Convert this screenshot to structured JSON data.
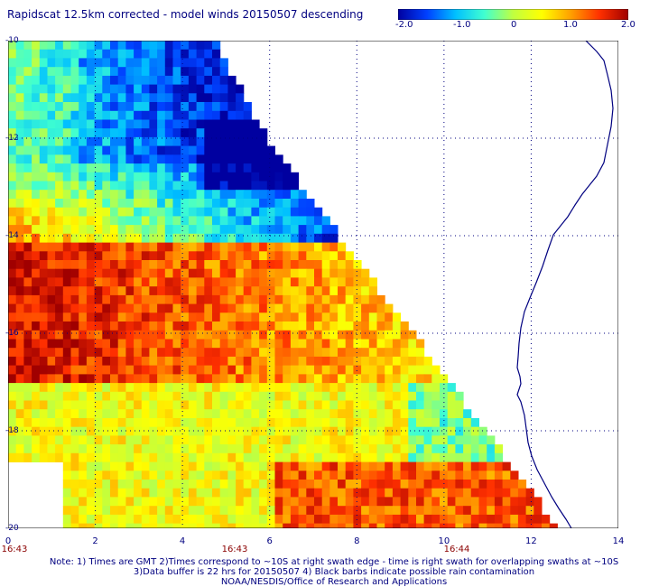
{
  "title": "Rapidscat 12.5km corrected - model winds 20150507 descending",
  "colorbar": {
    "labels": [
      "-2.0",
      "-1.0",
      "0",
      "1.0",
      "2.0"
    ],
    "range": [
      -2.0,
      2.0
    ],
    "colors": [
      "#0000a0",
      "#0040ff",
      "#00c0ff",
      "#40ffd0",
      "#c0ff40",
      "#ffff00",
      "#ffa000",
      "#ff3000",
      "#a00000"
    ]
  },
  "x_axis": {
    "range": [
      0,
      14
    ],
    "ticks": [
      "0",
      "2",
      "4",
      "6",
      "8",
      "10",
      "12",
      "14"
    ]
  },
  "y_axis": {
    "range": [
      -20,
      -10
    ],
    "ticks": [
      "-10",
      "-12",
      "-14",
      "-16",
      "-18",
      "-20"
    ]
  },
  "times": [
    {
      "x": 0,
      "label": "16:43"
    },
    {
      "x": 5.2,
      "label": "16:43"
    },
    {
      "x": 10.3,
      "label": "16:44"
    }
  ],
  "notes": [
    "Note: 1) Times are GMT 2)Times correspond to ~10S at right swath edge - time is right swath for overlapping swaths at ~10S",
    "3)Data buffer is 22 hrs for 20150507 4) Black barbs indicate possible rain contamination",
    "NOAA/NESDIS/Office of Research and Applications"
  ],
  "colors": {
    "text": "#000080",
    "time": "#8b0000",
    "grid": "#000080",
    "coast": "#000080"
  }
}
